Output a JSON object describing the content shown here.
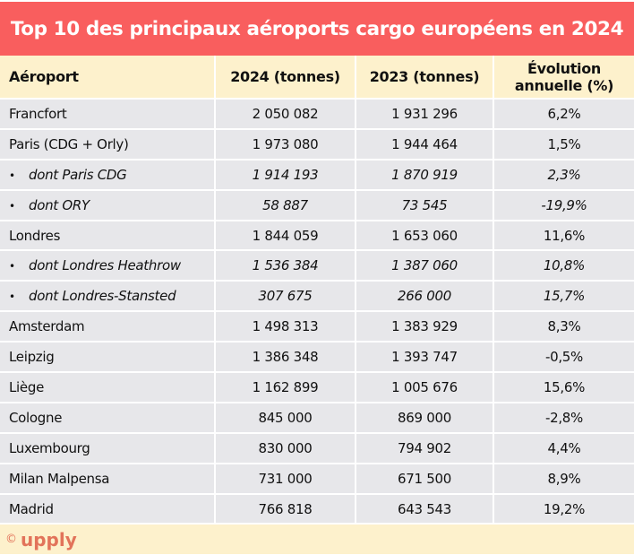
{
  "title": "Top 10 des principaux aéroports cargo européens en 2024",
  "chart_data": {
    "type": "table",
    "title": "Top 10 des principaux aéroports cargo européens en 2024",
    "columns": [
      "Aéroport",
      "2024 (tonnes)",
      "2023 (tonnes)",
      "Évolution annuelle (%)"
    ],
    "rows": [
      {
        "airport": "Francfort",
        "y2024": "2 050 082",
        "y2023": "1 931 296",
        "evolution": "6,2%",
        "sub": false
      },
      {
        "airport": "Paris (CDG + Orly)",
        "y2024": "1 973 080",
        "y2023": "1 944 464",
        "evolution": "1,5%",
        "sub": false
      },
      {
        "airport": "dont Paris CDG",
        "y2024": "1 914 193",
        "y2023": "1 870 919",
        "evolution": "2,3%",
        "sub": true
      },
      {
        "airport": "dont ORY",
        "y2024": "58 887",
        "y2023": "73 545",
        "evolution": "-19,9%",
        "sub": true
      },
      {
        "airport": "Londres",
        "y2024": "1 844 059",
        "y2023": "1 653 060",
        "evolution": "11,6%",
        "sub": false
      },
      {
        "airport": "dont Londres Heathrow",
        "y2024": "1 536 384",
        "y2023": "1 387 060",
        "evolution": "10,8%",
        "sub": true
      },
      {
        "airport": "dont Londres-Stansted",
        "y2024": "307 675",
        "y2023": "266 000",
        "evolution": "15,7%",
        "sub": true
      },
      {
        "airport": "Amsterdam",
        "y2024": "1 498 313",
        "y2023": "1 383 929",
        "evolution": "8,3%",
        "sub": false
      },
      {
        "airport": "Leipzig",
        "y2024": "1 386 348",
        "y2023": "1 393 747",
        "evolution": "-0,5%",
        "sub": false
      },
      {
        "airport": "Liège",
        "y2024": "1 162 899",
        "y2023": "1 005 676",
        "evolution": "15,6%",
        "sub": false
      },
      {
        "airport": "Cologne",
        "y2024": "845 000",
        "y2023": "869 000",
        "evolution": "-2,8%",
        "sub": false
      },
      {
        "airport": "Luxembourg",
        "y2024": "830 000",
        "y2023": "794 902",
        "evolution": "4,4%",
        "sub": false
      },
      {
        "airport": "Milan Malpensa",
        "y2024": "731 000",
        "y2023": "671 500",
        "evolution": "8,9%",
        "sub": false
      },
      {
        "airport": "Madrid",
        "y2024": "766 818",
        "y2023": "643 543",
        "evolution": "19,2%",
        "sub": false
      }
    ]
  },
  "header": {
    "col0": "Aéroport",
    "col1": "2024 (tonnes)",
    "col2": "2023 (tonnes)",
    "col3_line1": "Évolution",
    "col3_line2": "annuelle (%)"
  },
  "footer": {
    "copyright": "©",
    "brand": "upply"
  },
  "colors": {
    "title_bg": "#f95e5e",
    "header_bg": "#fdf1cc",
    "row_bg": "#e7e7ea",
    "brand": "#e2735a"
  }
}
